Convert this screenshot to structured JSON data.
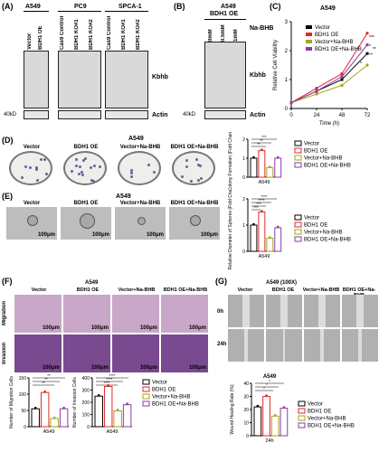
{
  "colors": {
    "vector": "#000000",
    "bdh1_oe": "#e0282a",
    "vec_nabhb": "#a6a61a",
    "bdh1_nabhb": "#8b3aa8"
  },
  "panelA": {
    "label": "(A)",
    "cell": "A549",
    "lanes": [
      "Vector",
      "BDH1 OE",
      "Cas9 Control",
      "BDH1 KO#1",
      "BDH1 KO#2",
      "Cas9 Control",
      "BDH1 KO#1",
      "BDH1 KO#2"
    ],
    "groups": [
      "PC9",
      "SPCA-1"
    ],
    "right": "Kbhb",
    "actin": "Actin",
    "kd": "40kD"
  },
  "panelB": {
    "label": "(B)",
    "cell": "A549",
    "group": "BDH1 OE",
    "lanes": [
      "0mM",
      "0.5mM",
      "1mM"
    ],
    "treatment": "Na-BHB",
    "right": "Kbhb",
    "actin": "Actin",
    "kd": "40kD"
  },
  "panelC": {
    "label": "(C)",
    "title": "A549",
    "ylabel": "Relative Cell Viability",
    "xlabel": "Time (h)",
    "sig": [
      "***",
      "*",
      "*",
      "**",
      "**"
    ]
  },
  "panelD": {
    "label": "(D)",
    "title": "A549",
    "conds": [
      "Vector",
      "BDH1 OE",
      "Vector+Na-BHB",
      "BDH1 OE+Na-BHB"
    ],
    "ylabel": "Colony Formation (Fold Change)",
    "xlabel": "A549",
    "sig": [
      "***",
      "**",
      "**"
    ]
  },
  "panelE": {
    "label": "(E)",
    "title": "A549",
    "conds": [
      "Vector",
      "BDH1 OE",
      "Vector+Na-BHB",
      "BDH1 OE+Na-BHB"
    ],
    "scale": "100μm",
    "ylabel": "Relative Diameter of Spheres (Fold Change)",
    "xlabel": "A549",
    "sig": [
      "****",
      "****",
      "***",
      "***"
    ]
  },
  "panelF": {
    "label": "(F)",
    "title": "A549",
    "conds": [
      "Vector",
      "BDH1 OE",
      "Vector+Na-BHB",
      "BDH1 OE+Na-BHB"
    ],
    "rows": [
      "Migration",
      "Invasion"
    ],
    "scale": "100μm",
    "ylabel1": "Number of Migration Cells",
    "ylabel2": "Number of Invasion Cells",
    "xlabel": "A549",
    "sig1": [
      "**",
      "**",
      "**"
    ],
    "sig2": [
      "****",
      "****",
      "****"
    ]
  },
  "panelG": {
    "label": "(G)",
    "title": "A549 (100X)",
    "conds": [
      "Vector",
      "BDH1 OE",
      "Vector+Na-BHB",
      "BDH1 OE+Na-BHB"
    ],
    "rows": [
      "0h",
      "24h"
    ],
    "ylabel": "Wound Healing Rate (%)",
    "chart_title": "A549",
    "xlabel": "24h",
    "sig": [
      "*",
      "*",
      "*"
    ]
  },
  "legend": [
    "Vector",
    "BDH1 OE",
    "Vector+Na-BHB",
    "BDH1 OE+Na-BHB"
  ],
  "chart_data": [
    {
      "type": "line",
      "title": "A549",
      "xlabel": "Time (h)",
      "ylabel": "Relative Cell Viability",
      "x": [
        0,
        24,
        48,
        72
      ],
      "ylim": [
        0,
        3
      ],
      "series": [
        {
          "name": "Vector",
          "values": [
            0.2,
            0.6,
            1.0,
            1.9
          ]
        },
        {
          "name": "BDH1 OE",
          "values": [
            0.2,
            0.7,
            1.2,
            2.6
          ]
        },
        {
          "name": "Vector+Na-BHB",
          "values": [
            0.2,
            0.5,
            0.8,
            1.5
          ]
        },
        {
          "name": "BDH1 OE+Na-BHB",
          "values": [
            0.2,
            0.6,
            1.1,
            2.2
          ]
        }
      ]
    },
    {
      "type": "bar",
      "ylabel": "Colony Formation (Fold Change)",
      "xlabel": "A549",
      "categories": [
        "Vector",
        "BDH1 OE",
        "Vector+Na-BHB",
        "BDH1 OE+Na-BHB"
      ],
      "values": [
        1.0,
        1.4,
        0.5,
        1.0
      ],
      "ylim": [
        0,
        2
      ]
    },
    {
      "type": "bar",
      "ylabel": "Relative Diameter of Spheres (Fold Change)",
      "xlabel": "A549",
      "categories": [
        "Vector",
        "BDH1 OE",
        "Vector+Na-BHB",
        "BDH1 OE+Na-BHB"
      ],
      "values": [
        1.0,
        1.5,
        0.5,
        0.9
      ],
      "ylim": [
        0,
        2
      ]
    },
    {
      "type": "bar",
      "ylabel": "Number of Migration Cells",
      "xlabel": "A549",
      "categories": [
        "Vector",
        "BDH1 OE",
        "Vector+Na-BHB",
        "BDH1 OE+Na-BHB"
      ],
      "values": [
        55,
        105,
        25,
        55
      ],
      "ylim": [
        0,
        150
      ]
    },
    {
      "type": "bar",
      "ylabel": "Number of Invasion Cells",
      "xlabel": "A549",
      "categories": [
        "Vector",
        "BDH1 OE",
        "Vector+Na-BHB",
        "BDH1 OE+Na-BHB"
      ],
      "values": [
        250,
        330,
        130,
        180
      ],
      "ylim": [
        0,
        400
      ]
    },
    {
      "type": "bar",
      "ylabel": "Wound Healing Rate (%)",
      "xlabel": "24h",
      "categories": [
        "Vector",
        "BDH1 OE",
        "Vector+Na-BHB",
        "BDH1 OE+Na-BHB"
      ],
      "values": [
        22,
        30,
        15,
        21
      ],
      "ylim": [
        0,
        40
      ]
    }
  ]
}
